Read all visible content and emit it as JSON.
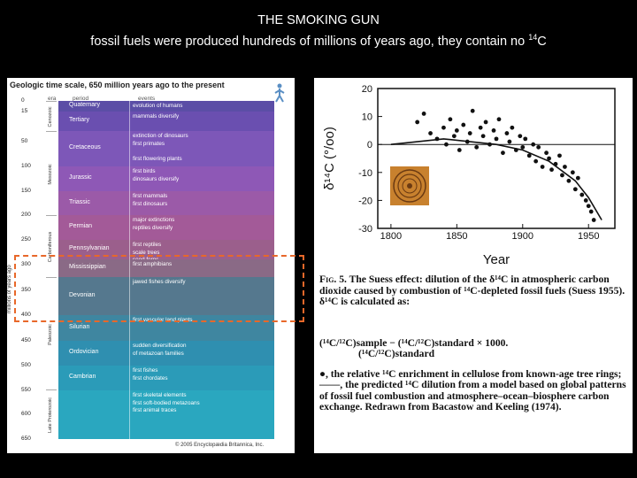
{
  "title": {
    "line1": "THE SMOKING GUN",
    "line2": "fossil fuels were produced hundreds of millions of years ago, they contain no ",
    "line2_sup": "14",
    "line2_end": "C"
  },
  "geo": {
    "title": "Geologic time scale, 650 million years ago to the present",
    "headers": [
      "era",
      "period",
      "events"
    ],
    "axis_label": "millions of years ago",
    "ticks": [
      "0",
      "15",
      "50",
      "100",
      "150",
      "200",
      "250",
      "300",
      "350",
      "400",
      "450",
      "500",
      "550",
      "600",
      "650"
    ],
    "eras": [
      "Cenozoic",
      "Mesozoic",
      "Carboniferous",
      "Paleozoic",
      "Late Proterozoic"
    ],
    "periods": [
      {
        "name": "Quaternary",
        "events": [
          "evolution of humans"
        ],
        "color": "#5b4ea6"
      },
      {
        "name": "Tertiary",
        "events": [
          "mammals diversify"
        ],
        "color": "#6a4fb0"
      },
      {
        "name": "Cretaceous",
        "events": [
          "extinction of dinosaurs",
          "first primates",
          "",
          "first flowering plants"
        ],
        "color": "#7d57b8"
      },
      {
        "name": "Jurassic",
        "events": [
          "first birds",
          "dinosaurs diversify"
        ],
        "color": "#8e58b6"
      },
      {
        "name": "Triassic",
        "events": [
          "first mammals",
          "first dinosaurs"
        ],
        "color": "#9b5aa8"
      },
      {
        "name": "Permian",
        "events": [
          "major extinctions",
          "reptiles diversify"
        ],
        "color": "#a35a98"
      },
      {
        "name": "Pennsylvanian",
        "events": [
          "first reptiles",
          "scale trees",
          "seed ferns"
        ],
        "color": "#9b5f8c"
      },
      {
        "name": "Mississippian",
        "events": [
          "first amphibians"
        ],
        "color": "#8a6a86"
      },
      {
        "name": "Devonian",
        "events": [
          "jawed fishes diversify"
        ],
        "color": "#55788e"
      },
      {
        "name": "Silurian",
        "events": [
          "first vascular land plants"
        ],
        "color": "#3f86a0"
      },
      {
        "name": "Ordovician",
        "events": [
          "sudden diversification",
          "of metazoan families"
        ],
        "color": "#2f8fb0"
      },
      {
        "name": "Cambrian",
        "events": [
          "first fishes",
          "first chordates"
        ],
        "color": "#2b9bb8"
      },
      {
        "name": "",
        "events": [
          "first skeletal elements",
          "first soft-bodied metazoans",
          "first animal traces"
        ],
        "color": "#2aa7bf"
      }
    ],
    "copyright": "© 2005 Encyclopædia Britannica, Inc."
  },
  "plot": {
    "caption_lead": "Fig. 5.",
    "caption_title": "The Suess effect: dilution of the δ¹⁴C in atmospheric carbon dioxide caused by combustion of ¹⁴C-depleted fossil fuels (Suess 1955). δ¹⁴C is calculated as:",
    "equation": "(¹⁴C/¹²C)sample − (¹⁴C/¹²C)standard × 1000.",
    "equation_den": "(¹⁴C/¹²C)standard",
    "caption_body": "●, the relative ¹⁴C enrichment in cellulose from known-age tree rings; ——, the predicted ¹⁴C dilution from a model based on global patterns of fossil fuel combustion and atmosphere–ocean–biosphere carbon exchange. Redrawn from Bacastow and Keeling (1974)."
  },
  "chart_data": {
    "type": "scatter",
    "xlabel": "Year",
    "ylabel": "δ¹⁴C (°/oo)",
    "xlim": [
      1790,
      1970
    ],
    "ylim": [
      -30,
      20
    ],
    "xticks": [
      "1800",
      "1850",
      "1900",
      "1950"
    ],
    "yticks": [
      "20",
      "10",
      "0",
      "-10",
      "-20",
      "-30"
    ],
    "x": [
      1820,
      1825,
      1830,
      1835,
      1840,
      1842,
      1845,
      1848,
      1850,
      1852,
      1855,
      1858,
      1860,
      1862,
      1865,
      1868,
      1870,
      1872,
      1875,
      1878,
      1880,
      1882,
      1885,
      1888,
      1890,
      1892,
      1895,
      1898,
      1900,
      1902,
      1905,
      1908,
      1910,
      1912,
      1915,
      1918,
      1920,
      1922,
      1925,
      1928,
      1930,
      1932,
      1935,
      1938,
      1940,
      1942,
      1945,
      1948,
      1950,
      1952,
      1954
    ],
    "y": [
      8,
      11,
      4,
      2,
      6,
      0,
      9,
      3,
      5,
      -2,
      7,
      1,
      4,
      12,
      -1,
      6,
      3,
      8,
      0,
      5,
      2,
      9,
      -3,
      4,
      1,
      6,
      -2,
      3,
      -1,
      2,
      -4,
      0,
      -6,
      -1,
      -8,
      -3,
      -5,
      -9,
      -7,
      -4,
      -11,
      -8,
      -13,
      -10,
      -16,
      -12,
      -18,
      -20,
      -22,
      -24,
      -27
    ],
    "model_x": [
      1800,
      1840,
      1880,
      1900,
      1920,
      1940,
      1950,
      1960
    ],
    "model_y": [
      0,
      2,
      0,
      -2,
      -6,
      -13,
      -19,
      -27
    ]
  }
}
